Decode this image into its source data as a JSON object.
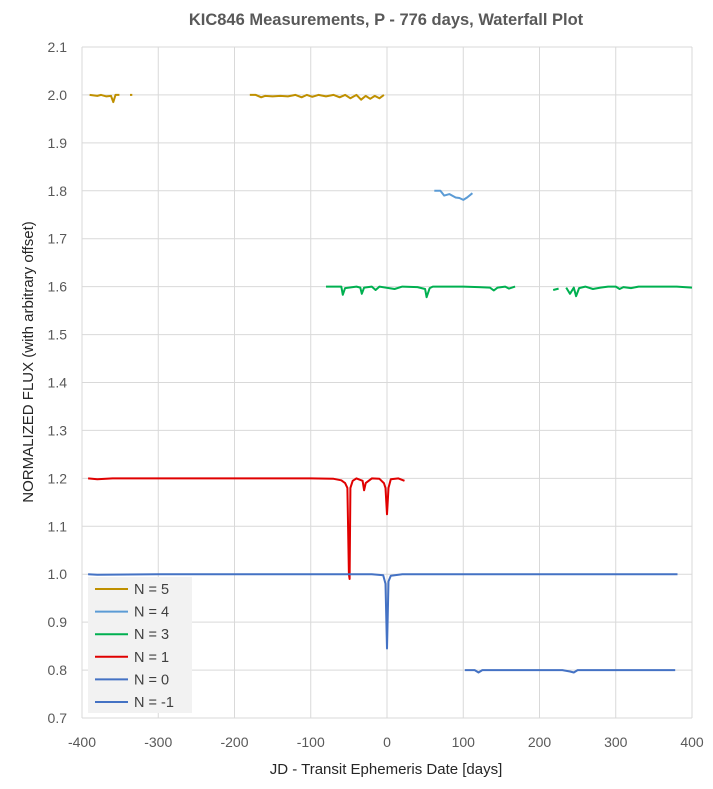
{
  "chart_data": {
    "type": "line",
    "title": "KIC846 Measurements, P - 776 days, Waterfall Plot",
    "xlabel": "JD - Transit Ephemeris Date [days]",
    "ylabel": "NORMALIZED FLUX (with arbitrary offset)",
    "xlim": [
      -400,
      400
    ],
    "ylim": [
      0.7,
      2.1
    ],
    "xticks": [
      "-400",
      "-300",
      "-200",
      "-100",
      "0",
      "100",
      "200",
      "300",
      "400"
    ],
    "yticks": [
      "0.7",
      "0.8",
      "0.9",
      "1.0",
      "1.1",
      "1.2",
      "1.3",
      "1.4",
      "1.5",
      "1.6",
      "1.7",
      "1.8",
      "1.9",
      "2.0",
      "2.1"
    ],
    "grid": true,
    "legend_position": "bottom-left",
    "legend": [
      "N = 5",
      "N = 4",
      "N = 3",
      "N = 1",
      "N = 0",
      "N = -1"
    ],
    "colors": {
      "N = 5": "#bf9000",
      "N = 4": "#5b9bd5",
      "N = 3": "#00b050",
      "N = 1": "#e00000",
      "N = 0": "#4472c4",
      "N = -1": "#4472c4"
    },
    "series": [
      {
        "name": "N = 5",
        "segments": [
          [
            [
              -390,
              2.0
            ],
            [
              -380,
              1.998
            ],
            [
              -375,
              2.0
            ],
            [
              -368,
              1.997
            ],
            [
              -362,
              1.998
            ],
            [
              -359,
              1.985
            ],
            [
              -356,
              2.0
            ],
            [
              -351,
              2.0
            ]
          ],
          [
            [
              -337,
              2.0
            ],
            [
              -334,
              2.0
            ]
          ],
          [
            [
              -180,
              2.0
            ],
            [
              -172,
              2.0
            ],
            [
              -165,
              1.995
            ],
            [
              -160,
              1.998
            ],
            [
              -150,
              1.997
            ],
            [
              -140,
              1.998
            ],
            [
              -130,
              1.997
            ],
            [
              -120,
              2.0
            ],
            [
              -112,
              1.995
            ],
            [
              -105,
              2.0
            ],
            [
              -98,
              1.996
            ],
            [
              -90,
              2.0
            ],
            [
              -80,
              1.997
            ],
            [
              -70,
              2.0
            ],
            [
              -62,
              1.995
            ],
            [
              -55,
              2.0
            ],
            [
              -48,
              1.993
            ],
            [
              -40,
              2.0
            ],
            [
              -34,
              1.99
            ],
            [
              -28,
              1.998
            ],
            [
              -22,
              1.992
            ],
            [
              -16,
              1.998
            ],
            [
              -10,
              1.993
            ],
            [
              -4,
              2.0
            ]
          ]
        ]
      },
      {
        "name": "N = 4",
        "segments": [
          [
            [
              62,
              1.8
            ],
            [
              70,
              1.8
            ],
            [
              75,
              1.79
            ],
            [
              82,
              1.793
            ],
            [
              90,
              1.786
            ],
            [
              95,
              1.785
            ],
            [
              100,
              1.781
            ],
            [
              105,
              1.786
            ],
            [
              112,
              1.795
            ]
          ]
        ]
      },
      {
        "name": "N = 3",
        "segments": [
          [
            [
              -80,
              1.6
            ],
            [
              -60,
              1.6
            ],
            [
              -58,
              1.583
            ],
            [
              -55,
              1.597
            ],
            [
              -40,
              1.6
            ],
            [
              -35,
              1.598
            ],
            [
              -33,
              1.585
            ],
            [
              -30,
              1.598
            ],
            [
              -20,
              1.6
            ],
            [
              -15,
              1.593
            ],
            [
              -10,
              1.6
            ],
            [
              10,
              1.595
            ],
            [
              20,
              1.6
            ],
            [
              40,
              1.599
            ],
            [
              50,
              1.595
            ],
            [
              52,
              1.578
            ],
            [
              56,
              1.597
            ],
            [
              60,
              1.6
            ],
            [
              100,
              1.6
            ],
            [
              120,
              1.599
            ],
            [
              135,
              1.598
            ],
            [
              140,
              1.592
            ],
            [
              145,
              1.598
            ],
            [
              155,
              1.6
            ],
            [
              160,
              1.596
            ],
            [
              168,
              1.6
            ]
          ],
          [
            [
              218,
              1.593
            ],
            [
              225,
              1.596
            ]
          ],
          [
            [
              235,
              1.598
            ],
            [
              240,
              1.585
            ],
            [
              245,
              1.598
            ],
            [
              248,
              1.58
            ],
            [
              252,
              1.597
            ],
            [
              260,
              1.6
            ],
            [
              270,
              1.595
            ],
            [
              280,
              1.598
            ],
            [
              290,
              1.6
            ],
            [
              300,
              1.6
            ],
            [
              305,
              1.595
            ],
            [
              310,
              1.599
            ],
            [
              320,
              1.597
            ],
            [
              330,
              1.6
            ],
            [
              350,
              1.6
            ],
            [
              380,
              1.6
            ],
            [
              400,
              1.598
            ]
          ]
        ]
      },
      {
        "name": "N = 1",
        "segments": [
          [
            [
              -392,
              1.2
            ],
            [
              -380,
              1.198
            ],
            [
              -360,
              1.2
            ],
            [
              -300,
              1.2
            ],
            [
              -200,
              1.2
            ],
            [
              -100,
              1.2
            ],
            [
              -70,
              1.199
            ],
            [
              -60,
              1.196
            ],
            [
              -55,
              1.19
            ],
            [
              -52,
              1.18
            ],
            [
              -50,
              1.0
            ],
            [
              -49,
              0.99
            ],
            [
              -48,
              1.18
            ],
            [
              -45,
              1.195
            ],
            [
              -40,
              1.2
            ],
            [
              -32,
              1.195
            ],
            [
              -30,
              1.175
            ],
            [
              -28,
              1.19
            ],
            [
              -20,
              1.2
            ],
            [
              -10,
              1.199
            ],
            [
              -4,
              1.19
            ],
            [
              -2,
              1.18
            ],
            [
              0,
              1.125
            ],
            [
              2,
              1.18
            ],
            [
              5,
              1.198
            ],
            [
              15,
              1.2
            ],
            [
              23,
              1.195
            ]
          ]
        ]
      },
      {
        "name": "N = 0",
        "segments": [
          [
            [
              -392,
              1.0
            ],
            [
              -380,
              0.999
            ],
            [
              -300,
              1.0
            ],
            [
              -200,
              1.0
            ],
            [
              -100,
              1.0
            ],
            [
              -60,
              1.0
            ],
            [
              -50,
              1.0
            ],
            [
              -20,
              1.0
            ],
            [
              -5,
              0.998
            ],
            [
              -2,
              0.98
            ],
            [
              0,
              0.845
            ],
            [
              2,
              0.985
            ],
            [
              5,
              0.997
            ],
            [
              20,
              1.0
            ],
            [
              100,
              1.0
            ],
            [
              200,
              1.0
            ],
            [
              300,
              1.0
            ],
            [
              381,
              1.0
            ]
          ]
        ]
      },
      {
        "name": "N = -1",
        "segments": [
          [
            [
              102,
              0.8
            ],
            [
              115,
              0.8
            ],
            [
              120,
              0.795
            ],
            [
              125,
              0.8
            ],
            [
              140,
              0.8
            ],
            [
              200,
              0.8
            ],
            [
              230,
              0.8
            ],
            [
              240,
              0.797
            ],
            [
              245,
              0.795
            ],
            [
              250,
              0.8
            ],
            [
              300,
              0.8
            ],
            [
              340,
              0.8
            ],
            [
              378,
              0.8
            ]
          ]
        ]
      }
    ]
  }
}
